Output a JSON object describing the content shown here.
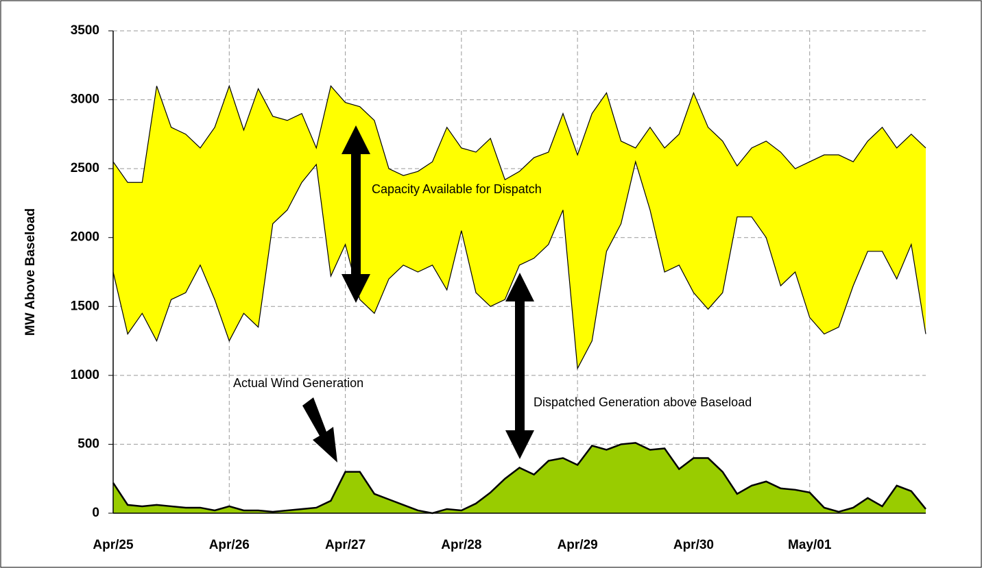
{
  "chart_data": {
    "type": "area",
    "ylabel": "MW Above Baseload",
    "categories": [
      "Apr/25",
      null,
      null,
      null,
      null,
      null,
      null,
      null,
      "Apr/26",
      null,
      null,
      null,
      null,
      null,
      null,
      null,
      "Apr/27",
      null,
      null,
      null,
      null,
      null,
      null,
      null,
      "Apr/28",
      null,
      null,
      null,
      null,
      null,
      null,
      null,
      "Apr/29",
      null,
      null,
      null,
      null,
      null,
      null,
      null,
      "Apr/30",
      null,
      null,
      null,
      null,
      null,
      null,
      null,
      "May/01",
      null,
      null,
      null,
      null,
      null,
      null,
      null,
      null
    ],
    "series": [
      {
        "color": "#ffff00",
        "values": [
          2550,
          2400,
          2400,
          3100,
          2800,
          2750,
          2650,
          2800,
          3100,
          2780,
          3080,
          2880,
          2850,
          2900,
          2650,
          3100,
          2980,
          2950,
          2850,
          2500,
          2450,
          2480,
          2550,
          2800,
          2650,
          2620,
          2720,
          2420,
          2480,
          2580,
          2620,
          2900,
          2600,
          2900,
          3050,
          2700,
          2650,
          2800,
          2650,
          2750,
          3050,
          2800,
          2700,
          2520,
          2650,
          2700,
          2620,
          2500,
          2550,
          2600,
          2600,
          2550,
          2700,
          2800,
          2650,
          2750,
          2650
        ],
        "lower": [
          1750,
          1300,
          1450,
          1250,
          1550,
          1600,
          1800,
          1550,
          1250,
          1450,
          1350,
          2100,
          2200,
          2400,
          2530,
          1720,
          1950,
          1550,
          1450,
          1700,
          1800,
          1750,
          1800,
          1620,
          2050,
          1600,
          1500,
          1550,
          1800,
          1850,
          1950,
          2200,
          1050,
          1250,
          1900,
          2100,
          2550,
          2200,
          1750,
          1800,
          1600,
          1480,
          1600,
          2150,
          2150,
          2000,
          1650,
          1750,
          1420,
          1300,
          1350,
          1650,
          1900,
          1900,
          1700,
          1950,
          1300
        ]
      },
      {
        "color": "#99cc00",
        "values": [
          220,
          60,
          50,
          60,
          50,
          40,
          40,
          20,
          50,
          20,
          20,
          10,
          20,
          30,
          40,
          90,
          300,
          300,
          140,
          100,
          60,
          20,
          0,
          30,
          20,
          70,
          150,
          250,
          330,
          280,
          380,
          400,
          350,
          490,
          460,
          500,
          510,
          460,
          470,
          320,
          400,
          400,
          300,
          140,
          200,
          230,
          180,
          170,
          150,
          40,
          10,
          40,
          110,
          50,
          200,
          160,
          30
        ]
      }
    ],
    "annotations": [
      "Capacity Available for Dispatch",
      "Actual Wind Generation",
      "Dispatched Generation above Baseload"
    ],
    "ylim": [
      0,
      3500
    ],
    "yticks": [
      0,
      500,
      1000,
      1500,
      2000,
      2500,
      3000,
      3500
    ],
    "grid": true
  }
}
